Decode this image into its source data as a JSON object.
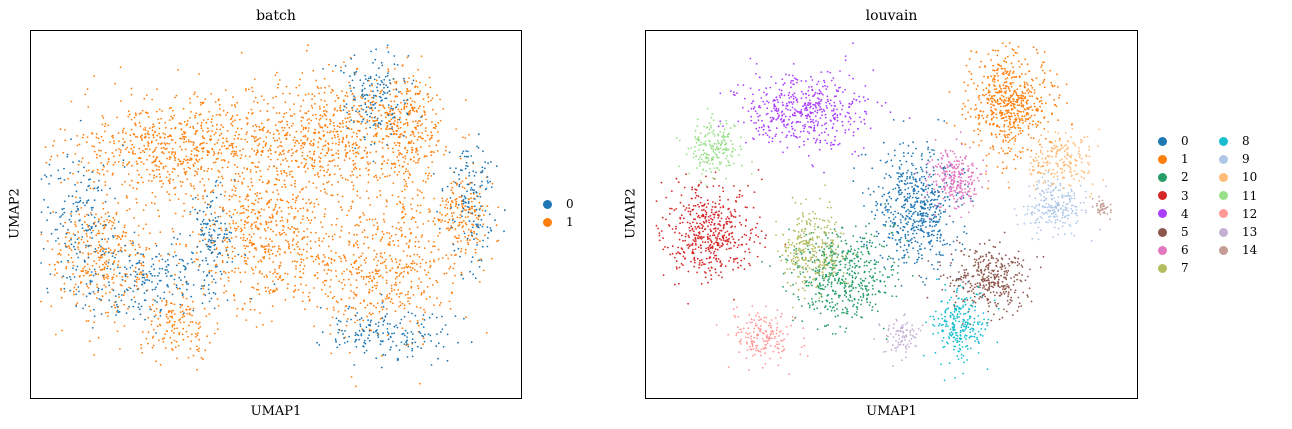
{
  "chart_data": [
    {
      "type": "scatter",
      "title": "batch",
      "xlabel": "UMAP1",
      "ylabel": "UMAP2",
      "legend_position": "right",
      "categories": [
        "0",
        "1"
      ],
      "colors": [
        "#1f77b4",
        "#ff7f0e"
      ],
      "grid": false,
      "ticks": false,
      "clusters": [
        {
          "label": "1",
          "cx": 0.62,
          "cy": 0.72,
          "rx": 0.22,
          "ry": 0.18,
          "n": 700
        },
        {
          "label": "1",
          "cx": 0.3,
          "cy": 0.68,
          "rx": 0.24,
          "ry": 0.15,
          "n": 700
        },
        {
          "label": "1",
          "cx": 0.15,
          "cy": 0.38,
          "rx": 0.12,
          "ry": 0.18,
          "n": 350
        },
        {
          "label": "1",
          "cx": 0.48,
          "cy": 0.44,
          "rx": 0.18,
          "ry": 0.22,
          "n": 600
        },
        {
          "label": "1",
          "cx": 0.72,
          "cy": 0.35,
          "rx": 0.18,
          "ry": 0.2,
          "n": 500
        },
        {
          "label": "1",
          "cx": 0.77,
          "cy": 0.75,
          "rx": 0.07,
          "ry": 0.18,
          "n": 250
        },
        {
          "label": "1",
          "cx": 0.88,
          "cy": 0.5,
          "rx": 0.07,
          "ry": 0.12,
          "n": 180
        },
        {
          "label": "1",
          "cx": 0.3,
          "cy": 0.2,
          "rx": 0.08,
          "ry": 0.1,
          "n": 150
        },
        {
          "label": "0",
          "cx": 0.23,
          "cy": 0.32,
          "rx": 0.18,
          "ry": 0.12,
          "n": 260
        },
        {
          "label": "0",
          "cx": 0.72,
          "cy": 0.18,
          "rx": 0.15,
          "ry": 0.08,
          "n": 180
        },
        {
          "label": "0",
          "cx": 0.7,
          "cy": 0.82,
          "rx": 0.08,
          "ry": 0.12,
          "n": 160
        },
        {
          "label": "0",
          "cx": 0.9,
          "cy": 0.55,
          "rx": 0.06,
          "ry": 0.2,
          "n": 150
        },
        {
          "label": "0",
          "cx": 0.1,
          "cy": 0.5,
          "rx": 0.08,
          "ry": 0.2,
          "n": 150
        },
        {
          "label": "0",
          "cx": 0.37,
          "cy": 0.45,
          "rx": 0.05,
          "ry": 0.12,
          "n": 120
        }
      ]
    },
    {
      "type": "scatter",
      "title": "louvain",
      "xlabel": "UMAP1",
      "ylabel": "UMAP2",
      "legend_position": "right",
      "categories": [
        "0",
        "1",
        "2",
        "3",
        "4",
        "5",
        "6",
        "7",
        "8",
        "9",
        "10",
        "11",
        "12",
        "13",
        "14"
      ],
      "colors": [
        "#1f77b4",
        "#ff7f0e",
        "#279e68",
        "#d62728",
        "#aa40fc",
        "#8c564b",
        "#e377c2",
        "#b5bd61",
        "#17becf",
        "#aec7e8",
        "#ffbb78",
        "#98df8a",
        "#ff9896",
        "#c5b0d5",
        "#c49c94"
      ],
      "grid": false,
      "ticks": false,
      "clusters": [
        {
          "label": "0",
          "cx": 0.55,
          "cy": 0.52,
          "rx": 0.1,
          "ry": 0.18,
          "n": 600
        },
        {
          "label": "1",
          "cx": 0.74,
          "cy": 0.8,
          "rx": 0.09,
          "ry": 0.16,
          "n": 600
        },
        {
          "label": "2",
          "cx": 0.4,
          "cy": 0.33,
          "rx": 0.11,
          "ry": 0.15,
          "n": 500
        },
        {
          "label": "3",
          "cx": 0.13,
          "cy": 0.45,
          "rx": 0.11,
          "ry": 0.14,
          "n": 500
        },
        {
          "label": "4",
          "cx": 0.32,
          "cy": 0.78,
          "rx": 0.14,
          "ry": 0.12,
          "n": 500
        },
        {
          "label": "5",
          "cx": 0.7,
          "cy": 0.32,
          "rx": 0.09,
          "ry": 0.1,
          "n": 350
        },
        {
          "label": "6",
          "cx": 0.63,
          "cy": 0.6,
          "rx": 0.06,
          "ry": 0.09,
          "n": 250
        },
        {
          "label": "7",
          "cx": 0.34,
          "cy": 0.4,
          "rx": 0.07,
          "ry": 0.13,
          "n": 300
        },
        {
          "label": "8",
          "cx": 0.64,
          "cy": 0.2,
          "rx": 0.06,
          "ry": 0.1,
          "n": 250
        },
        {
          "label": "9",
          "cx": 0.83,
          "cy": 0.52,
          "rx": 0.07,
          "ry": 0.08,
          "n": 220
        },
        {
          "label": "10",
          "cx": 0.84,
          "cy": 0.65,
          "rx": 0.08,
          "ry": 0.08,
          "n": 200
        },
        {
          "label": "11",
          "cx": 0.14,
          "cy": 0.68,
          "rx": 0.06,
          "ry": 0.09,
          "n": 200
        },
        {
          "label": "12",
          "cx": 0.24,
          "cy": 0.17,
          "rx": 0.07,
          "ry": 0.08,
          "n": 180
        },
        {
          "label": "13",
          "cx": 0.52,
          "cy": 0.17,
          "rx": 0.04,
          "ry": 0.06,
          "n": 90
        },
        {
          "label": "14",
          "cx": 0.93,
          "cy": 0.52,
          "rx": 0.02,
          "ry": 0.03,
          "n": 40
        }
      ]
    }
  ]
}
